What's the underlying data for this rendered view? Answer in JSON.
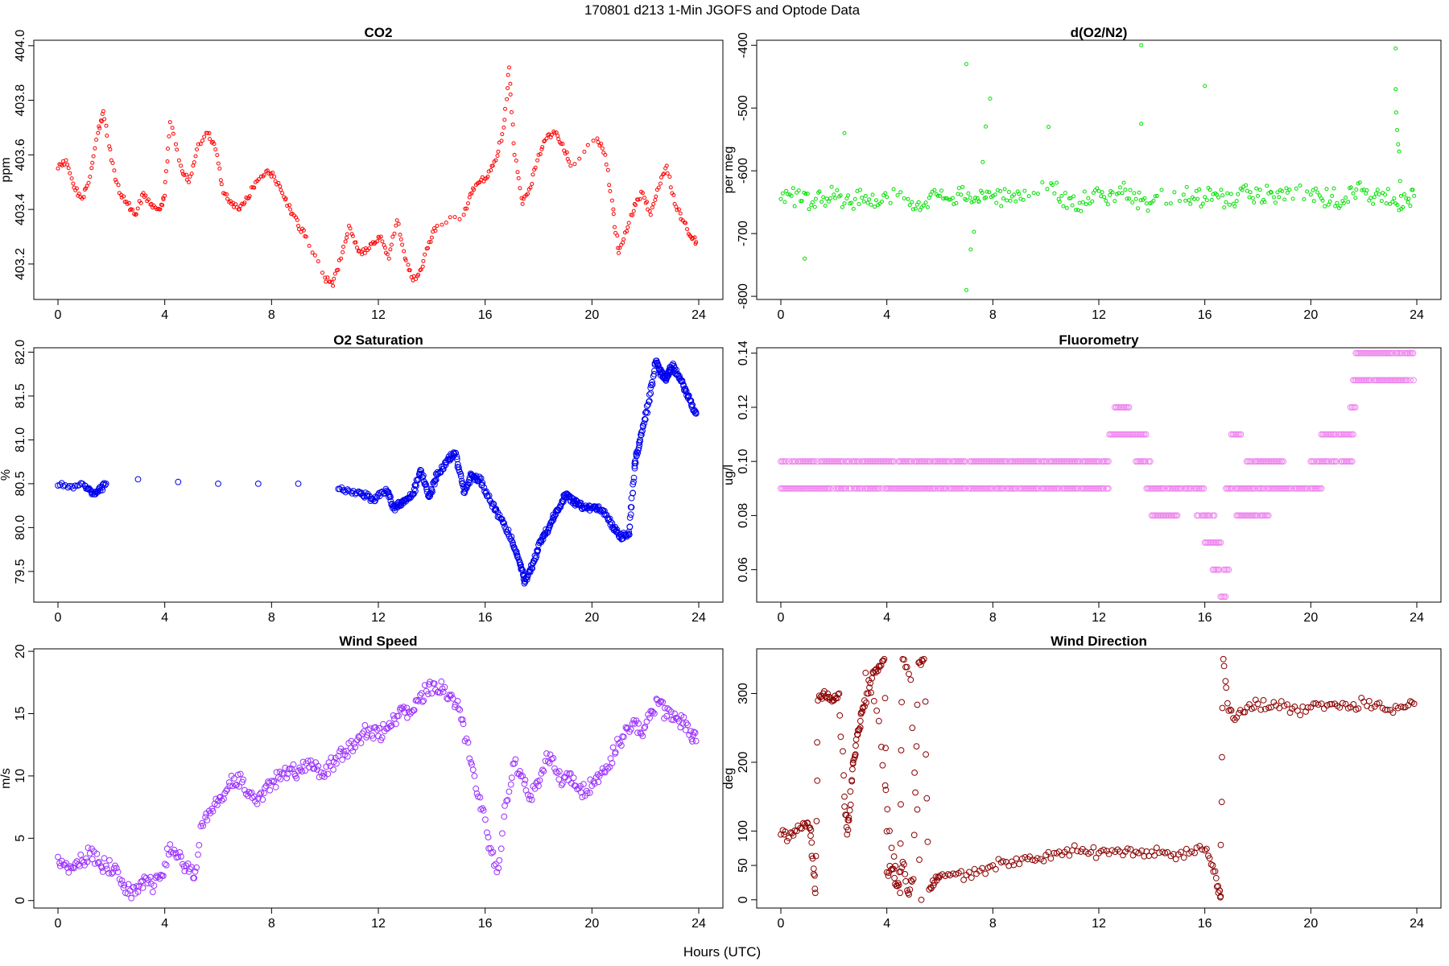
{
  "figure": {
    "title": "170801   d213   1-Min  JGOFS and Optode Data",
    "xlabel": "Hours (UTC)"
  },
  "chart_data": [
    {
      "type": "scatter",
      "title": "CO2",
      "ylabel": "ppm",
      "color": "#ff0000",
      "marker": "small-circle",
      "xlim": [
        0,
        24
      ],
      "ylim": [
        403.07,
        404.02
      ],
      "xticks": [
        0,
        4,
        8,
        12,
        16,
        20,
        24
      ],
      "yticks": [
        403.2,
        403.4,
        403.6,
        403.8,
        404.0
      ],
      "ytick_labels": [
        "403.2",
        "403.4",
        "403.6",
        "403.8",
        "404.0"
      ],
      "series": [
        {
          "x": [
            0,
            0.3,
            0.6,
            0.9,
            1.2,
            1.5,
            1.7,
            2.0,
            2.3,
            2.6,
            2.9,
            3.2,
            3.5,
            3.8,
            4.0,
            4.2,
            4.6,
            4.9,
            5.2,
            5.6,
            5.9,
            6.2,
            6.5,
            6.8,
            7.1,
            7.4,
            7.8,
            8.1,
            8.4,
            8.7,
            9.0,
            9.3,
            10.0,
            10.3,
            10.6,
            10.9,
            11.2,
            11.5,
            11.8,
            12.1,
            12.4,
            12.7,
            13.0,
            13.3,
            13.6,
            13.9,
            14.2,
            15.2,
            15.5,
            15.8,
            16.1,
            16.4,
            16.7,
            16.9,
            17.1,
            17.4,
            17.7,
            18.0,
            18.3,
            18.6,
            18.9,
            19.2,
            20.2,
            20.5,
            20.8,
            21.0,
            21.3,
            21.6,
            21.9,
            22.2,
            22.5,
            22.8,
            23.1,
            23.4,
            23.7,
            23.9
          ],
          "y": [
            403.55,
            403.58,
            403.48,
            403.44,
            403.52,
            403.68,
            403.76,
            403.58,
            403.46,
            403.42,
            403.38,
            403.46,
            403.42,
            403.4,
            403.45,
            403.72,
            403.56,
            403.5,
            403.62,
            403.68,
            403.62,
            403.46,
            403.42,
            403.4,
            403.44,
            403.5,
            403.54,
            403.52,
            403.46,
            403.4,
            403.34,
            403.3,
            403.15,
            403.12,
            403.22,
            403.34,
            403.26,
            403.24,
            403.28,
            403.3,
            403.22,
            403.36,
            403.22,
            403.14,
            403.18,
            403.28,
            403.34,
            403.38,
            403.46,
            403.5,
            403.52,
            403.58,
            403.7,
            403.92,
            403.6,
            403.42,
            403.48,
            403.6,
            403.66,
            403.68,
            403.64,
            403.56,
            403.66,
            403.6,
            403.4,
            403.24,
            403.32,
            403.42,
            403.46,
            403.38,
            403.48,
            403.56,
            403.42,
            403.36,
            403.3,
            403.28
          ]
        }
      ]
    },
    {
      "type": "scatter",
      "title": "d(O2/N2)",
      "ylabel": "per meg",
      "color": "#00e000",
      "marker": "small-circle",
      "xlim": [
        0,
        24
      ],
      "ylim": [
        -805,
        -392
      ],
      "xticks": [
        0,
        4,
        8,
        12,
        16,
        20,
        24
      ],
      "yticks": [
        -800,
        -700,
        -600,
        -500,
        -400
      ],
      "ytick_labels": [
        "-800",
        "-700",
        "-600",
        "-500",
        "-400"
      ],
      "series": [
        {
          "x": [
            0,
            0.4,
            0.8,
            1.2,
            1.6,
            2.0,
            2.4,
            2.8,
            3.2,
            3.6,
            4.0,
            4.8,
            5.2,
            5.6,
            6.0,
            6.4,
            6.8,
            7.2,
            7.6,
            8.0,
            8.4,
            8.8,
            9.2,
            10.2,
            10.6,
            11.0,
            11.4,
            11.8,
            12.2,
            12.6,
            13.0,
            13.4,
            13.8,
            14.2,
            15.2,
            15.6,
            16.0,
            16.4,
            16.8,
            17.2,
            17.6,
            18.0,
            18.4,
            18.8,
            19.2,
            20.0,
            20.4,
            20.8,
            21.2,
            21.6,
            22.0,
            22.4,
            22.8,
            23.2,
            23.6,
            23.9,
            0.9,
            2.4,
            7.0,
            7.0,
            7.9,
            10.1,
            13.6,
            13.6,
            16.0,
            23.2,
            23.2,
            23.4
          ],
          "y": [
            -645,
            -640,
            -648,
            -650,
            -642,
            -638,
            -652,
            -645,
            -640,
            -647,
            -642,
            -645,
            -650,
            -643,
            -640,
            -646,
            -638,
            -650,
            -635,
            -640,
            -644,
            -638,
            -632,
            -620,
            -640,
            -655,
            -650,
            -635,
            -642,
            -648,
            -630,
            -645,
            -652,
            -640,
            -638,
            -645,
            -642,
            -636,
            -650,
            -648,
            -632,
            -640,
            -636,
            -642,
            -630,
            -638,
            -644,
            -640,
            -648,
            -636,
            -630,
            -642,
            -638,
            -652,
            -644,
            -640,
            -740,
            -540,
            -430,
            -790,
            -485,
            -530,
            -400,
            -525,
            -465,
            -405,
            -470,
            -640
          ]
        }
      ]
    },
    {
      "type": "scatter",
      "title": "O2 Saturation",
      "ylabel": "%",
      "color": "#0000ee",
      "marker": "circle",
      "xlim": [
        0,
        24
      ],
      "ylim": [
        79.15,
        82.05
      ],
      "xticks": [
        0,
        4,
        8,
        12,
        16,
        20,
        24
      ],
      "yticks": [
        79.5,
        80.0,
        80.5,
        81.0,
        81.5,
        82.0
      ],
      "ytick_labels": [
        "79.5",
        "80.0",
        "80.5",
        "81.0",
        "81.5",
        "82.0"
      ],
      "series": [
        {
          "x": [
            0,
            1.0,
            1.4,
            1.8,
            3.0,
            4.5,
            6.0,
            7.5,
            9.0,
            10.5,
            11.3,
            11.8,
            12.3,
            12.6,
            12.9,
            13.3,
            13.6,
            13.9,
            14.2,
            14.6,
            14.9,
            15.2,
            15.5,
            15.8,
            16.2,
            16.6,
            17.0,
            17.3,
            17.5,
            17.8,
            18.1,
            18.4,
            18.7,
            19.0,
            19.3,
            19.6,
            20.0,
            20.4,
            20.8,
            21.1,
            21.4,
            21.6,
            21.8,
            22.1,
            22.4,
            22.6,
            22.8,
            23.0,
            23.3,
            23.6,
            23.9
          ],
          "y": [
            80.48,
            80.48,
            80.38,
            80.5,
            80.55,
            80.52,
            80.5,
            80.5,
            80.5,
            80.44,
            80.4,
            80.32,
            80.42,
            80.22,
            80.3,
            80.38,
            80.65,
            80.35,
            80.6,
            80.78,
            80.85,
            80.4,
            80.6,
            80.55,
            80.3,
            80.1,
            79.85,
            79.6,
            79.38,
            79.6,
            79.85,
            80.0,
            80.2,
            80.38,
            80.3,
            80.25,
            80.22,
            80.2,
            80.0,
            79.9,
            79.92,
            80.7,
            81.0,
            81.4,
            81.9,
            81.75,
            81.7,
            81.85,
            81.7,
            81.5,
            81.3
          ]
        }
      ]
    },
    {
      "type": "scatter",
      "title": "Fluorometry",
      "ylabel": "ug/l",
      "color": "#ee82ee",
      "marker": "circle",
      "xlim": [
        0,
        24
      ],
      "ylim": [
        0.048,
        0.142
      ],
      "xticks": [
        0,
        4,
        8,
        12,
        16,
        20,
        24
      ],
      "yticks": [
        0.06,
        0.08,
        0.1,
        0.12,
        0.14
      ],
      "ytick_labels": [
        "0.06",
        "0.08",
        "0.10",
        "0.12",
        "0.14"
      ],
      "series": [
        {
          "x_start": 0.0,
          "x_end": 12.4,
          "y": 0.09
        },
        {
          "x_start": 0.0,
          "x_end": 12.4,
          "y": 0.1
        },
        {
          "x_start": 12.4,
          "x_end": 13.8,
          "y": 0.11
        },
        {
          "x_start": 12.6,
          "x_end": 13.2,
          "y": 0.12
        },
        {
          "x_start": 13.4,
          "x_end": 14.0,
          "y": 0.1
        },
        {
          "x_start": 13.8,
          "x_end": 16.0,
          "y": 0.09
        },
        {
          "x_start": 14.0,
          "x_end": 15.0,
          "y": 0.08
        },
        {
          "x_start": 15.7,
          "x_end": 16.4,
          "y": 0.08
        },
        {
          "x_start": 16.0,
          "x_end": 16.6,
          "y": 0.07
        },
        {
          "x_start": 16.3,
          "x_end": 16.9,
          "y": 0.06
        },
        {
          "x_start": 16.6,
          "x_end": 16.8,
          "y": 0.05
        },
        {
          "x_start": 16.8,
          "x_end": 20.4,
          "y": 0.09
        },
        {
          "x_start": 17.0,
          "x_end": 17.4,
          "y": 0.11
        },
        {
          "x_start": 17.2,
          "x_end": 18.4,
          "y": 0.08
        },
        {
          "x_start": 17.4,
          "x_end": 19.0,
          "y": 0.1
        },
        {
          "x_start": 20.0,
          "x_end": 21.6,
          "y": 0.1
        },
        {
          "x_start": 20.4,
          "x_end": 21.6,
          "y": 0.11
        },
        {
          "x_start": 21.5,
          "x_end": 21.8,
          "y": 0.12
        },
        {
          "x_start": 21.6,
          "x_end": 23.9,
          "y": 0.13
        },
        {
          "x_start": 21.7,
          "x_end": 23.9,
          "y": 0.14
        }
      ]
    },
    {
      "type": "scatter",
      "title": "Wind Speed",
      "ylabel": "m/s",
      "color": "#9b30ff",
      "marker": "circle",
      "xlim": [
        0,
        24
      ],
      "ylim": [
        -0.6,
        20.2
      ],
      "xticks": [
        0,
        4,
        8,
        12,
        16,
        20,
        24
      ],
      "yticks": [
        0,
        5,
        10,
        15,
        20
      ],
      "ytick_labels": [
        "0",
        "5",
        "10",
        "15",
        "20"
      ],
      "series": [
        {
          "x": [
            0,
            0.3,
            0.6,
            0.9,
            1.2,
            1.5,
            1.8,
            2.1,
            2.4,
            2.7,
            3.0,
            3.3,
            3.6,
            3.9,
            4.2,
            4.5,
            4.8,
            5.1,
            5.4,
            5.7,
            6.0,
            6.3,
            6.6,
            6.9,
            7.2,
            7.5,
            7.8,
            8.1,
            8.4,
            8.7,
            9.0,
            9.3,
            9.6,
            9.9,
            10.2,
            10.5,
            10.8,
            11.1,
            11.4,
            11.7,
            12.0,
            12.3,
            12.6,
            12.9,
            13.2,
            13.5,
            13.8,
            14.1,
            14.4,
            14.7,
            15.0,
            15.3,
            15.6,
            15.9,
            16.2,
            16.5,
            16.8,
            17.1,
            17.4,
            17.7,
            18.0,
            18.3,
            18.6,
            18.9,
            19.2,
            19.5,
            19.8,
            20.1,
            20.4,
            20.7,
            21.0,
            21.3,
            21.6,
            21.9,
            22.2,
            22.5,
            22.8,
            23.1,
            23.4,
            23.7,
            23.9
          ],
          "y": [
            3.5,
            3.0,
            2.6,
            3.2,
            3.8,
            3.0,
            2.8,
            2.6,
            1.6,
            0.8,
            0.7,
            1.8,
            1.2,
            2.0,
            4.5,
            3.5,
            2.8,
            1.8,
            6.2,
            7.0,
            8.0,
            8.8,
            9.8,
            9.5,
            8.6,
            8.2,
            9.2,
            9.6,
            10.2,
            10.6,
            10.4,
            11.0,
            10.6,
            10.0,
            10.8,
            11.6,
            12.0,
            12.6,
            13.4,
            13.8,
            13.2,
            13.8,
            14.6,
            15.4,
            15.0,
            16.0,
            16.8,
            17.4,
            17.0,
            16.4,
            15.4,
            13.0,
            10.0,
            7.4,
            4.2,
            2.6,
            8.0,
            11.0,
            10.0,
            8.4,
            9.2,
            11.8,
            10.6,
            9.4,
            10.2,
            9.0,
            8.8,
            9.4,
            10.6,
            11.4,
            12.6,
            13.8,
            14.2,
            13.2,
            15.2,
            15.8,
            14.8,
            15.0,
            14.2,
            13.6,
            12.8
          ]
        }
      ]
    },
    {
      "type": "scatter",
      "title": "Wind Direction",
      "ylabel": "deg",
      "color": "#8b0000",
      "marker": "circle",
      "xlim": [
        0,
        24
      ],
      "ylim": [
        -12,
        365
      ],
      "xticks": [
        0,
        4,
        8,
        12,
        16,
        20,
        24
      ],
      "yticks": [
        0,
        50,
        100,
        200,
        300
      ],
      "ytick_labels": [
        "0",
        "50",
        "100",
        "200",
        "300"
      ],
      "series": [
        {
          "x": [
            0,
            0.3,
            0.6,
            0.9,
            1.1,
            1.2,
            1.3,
            1.4,
            1.6,
            1.8,
            2.0,
            2.2,
            2.4,
            2.5,
            2.6,
            2.7,
            2.8,
            2.9,
            3.0,
            3.1,
            3.3,
            3.5,
            3.7,
            3.9,
            4.0,
            4.2,
            4.4,
            4.6,
            4.8,
            5.0,
            5.2,
            5.4,
            5.6,
            5.8,
            6.0,
            6.5,
            7.0,
            7.5,
            8.0,
            8.5,
            9.0,
            9.5,
            10.0,
            10.5,
            11.0,
            11.5,
            12.0,
            12.5,
            13.0,
            13.5,
            14.0,
            14.5,
            15.0,
            15.5,
            16.0,
            16.3,
            16.5,
            16.6,
            16.7,
            16.9,
            17.2,
            17.6,
            18.0,
            18.5,
            19.0,
            19.5,
            20.0,
            20.5,
            21.0,
            21.5,
            22.0,
            22.5,
            23.0,
            23.5,
            23.9,
            3.2,
            3.7,
            4.1,
            4.5,
            4.6,
            4.9,
            5.3
          ],
          "y": [
            95,
            90,
            100,
            110,
            105,
            60,
            10,
            290,
            300,
            295,
            290,
            300,
            150,
            95,
            130,
            190,
            210,
            240,
            260,
            280,
            300,
            330,
            340,
            350,
            40,
            45,
            20,
            55,
            10,
            30,
            345,
            350,
            15,
            25,
            35,
            38,
            36,
            42,
            50,
            55,
            52,
            58,
            65,
            70,
            72,
            70,
            68,
            72,
            70,
            68,
            70,
            68,
            66,
            70,
            72,
            50,
            20,
            5,
            350,
            275,
            265,
            280,
            285,
            280,
            282,
            275,
            280,
            278,
            282,
            280,
            288,
            285,
            276,
            280,
            285,
            330,
            260,
            100,
            10,
            350,
            320,
            0
          ]
        }
      ]
    }
  ]
}
